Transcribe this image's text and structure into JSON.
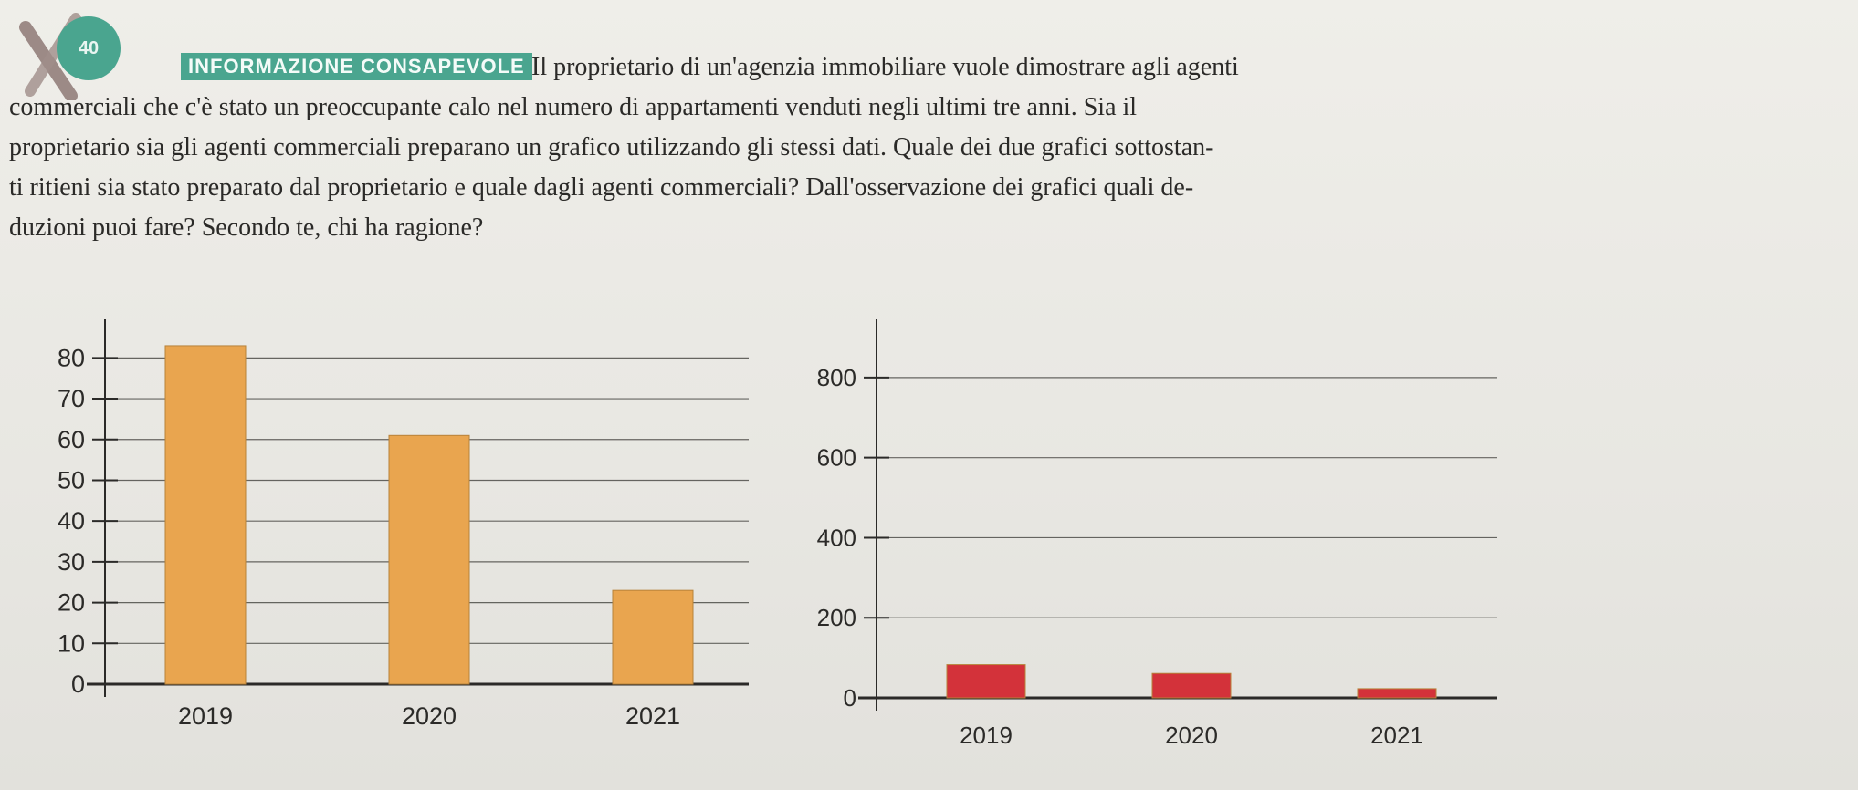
{
  "header": {
    "tag_label": "INFORMAZIONE CONSAPEVOLE",
    "badge_label": "40"
  },
  "text": {
    "line1": "Il proprietario di un'agenzia immobiliare vuole dimostrare agli agenti",
    "line2": "commerciali che c'è stato un preoccupante calo nel numero di appartamenti venduti negli ultimi tre anni. Sia il",
    "line3": "proprietario sia gli agenti commerciali preparano un grafico utilizzando gli stessi dati. Quale dei due grafici sottostan-",
    "line4": "ti ritieni sia stato preparato dal proprietario e quale dagli agenti commerciali? Dall'osservazione dei grafici quali de-",
    "line5": "duzioni puoi fare? Secondo te, chi ha ragione?"
  },
  "colors": {
    "left_bars": "#e9a54f",
    "right_bars": "#d3323a",
    "accent": "#4aa58f"
  },
  "chart_data": [
    {
      "type": "bar",
      "categories": [
        "2019",
        "2020",
        "2021"
      ],
      "values": [
        83,
        61,
        23
      ],
      "ylim": [
        0,
        85
      ],
      "yticks": [
        0,
        10,
        20,
        30,
        40,
        50,
        60,
        70,
        80
      ],
      "title": "",
      "xlabel": "",
      "ylabel": "",
      "grid": true
    },
    {
      "type": "bar",
      "categories": [
        "2019",
        "2020",
        "2021"
      ],
      "values": [
        83,
        61,
        23
      ],
      "ylim": [
        0,
        900
      ],
      "yticks": [
        0,
        200,
        400,
        600,
        800
      ],
      "title": "",
      "xlabel": "",
      "ylabel": "",
      "grid": true
    }
  ]
}
